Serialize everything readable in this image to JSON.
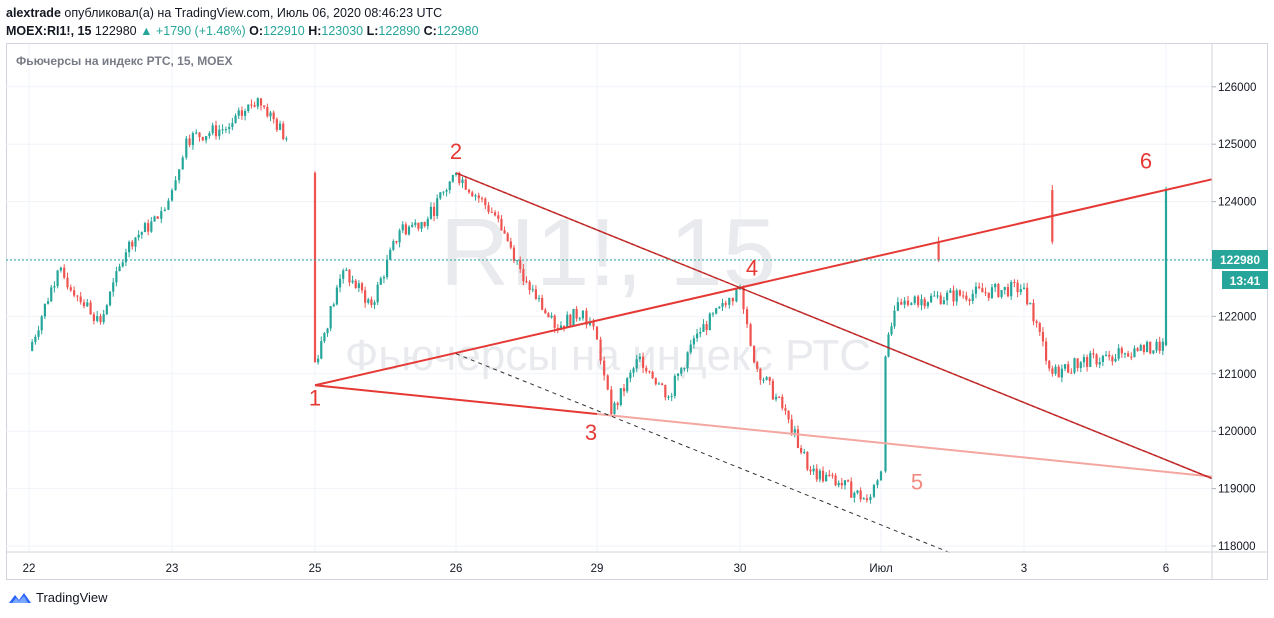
{
  "header": {
    "author": "alextrade",
    "published_text": "опубликовал(а) на TradingView.com, Июль 06, 2020 08:46:23 UTC",
    "symbol": "MOEX:RI1!, 15",
    "last": "122980",
    "change": "▲ +1790 (+1.48%)",
    "o_label": "O:",
    "o_value": "122910",
    "h_label": "H:",
    "h_value": "123030",
    "l_label": "L:",
    "l_value": "122890",
    "c_label": "C:",
    "c_value": "122980"
  },
  "chart": {
    "title": "Фьючерсы на индекс РТС, 15, MOEX",
    "watermark_big": "RI1!, 15",
    "watermark_small": "Фьючерсы на индекс РТС",
    "price_badge": "122980",
    "time_badge": "13:41"
  },
  "chart_data": {
    "type": "candlestick",
    "y_ticks": [
      118000,
      119000,
      120000,
      121000,
      122000,
      123000,
      124000,
      125000,
      126000
    ],
    "ylim": [
      117800,
      126600
    ],
    "x_ticks": [
      "22",
      "23",
      "25",
      "26",
      "29",
      "30",
      "Июл",
      "3",
      "6"
    ],
    "last_price": 122980,
    "price_path": [
      {
        "x": "22",
        "y": 121400
      },
      {
        "x": "22.2",
        "y": 122800
      },
      {
        "x": "22.5",
        "y": 121900
      },
      {
        "x": "22.7",
        "y": 123300
      },
      {
        "x": "22.9",
        "y": 123700
      },
      {
        "x": "23",
        "y": 124200
      },
      {
        "x": "23.1",
        "y": 125100
      },
      {
        "x": "23.4",
        "y": 125300
      },
      {
        "x": "23.6",
        "y": 125800
      },
      {
        "x": "23.8",
        "y": 125100
      },
      {
        "x": "24",
        "y": 124600
      },
      {
        "x": "25",
        "y": 124500
      },
      {
        "x": "25.0",
        "y": 121200
      },
      {
        "x": "25.2",
        "y": 122800
      },
      {
        "x": "25.4",
        "y": 122200
      },
      {
        "x": "25.6",
        "y": 123500
      },
      {
        "x": "25.8",
        "y": 123700
      },
      {
        "x": "26",
        "y": 124500
      },
      {
        "x": "26.3",
        "y": 123700
      },
      {
        "x": "26.5",
        "y": 122600
      },
      {
        "x": "26.7",
        "y": 121800
      },
      {
        "x": "26.9",
        "y": 122100
      },
      {
        "x": "29",
        "y": 121600
      },
      {
        "x": "29.1",
        "y": 120300
      },
      {
        "x": "29.3",
        "y": 121300
      },
      {
        "x": "29.5",
        "y": 120600
      },
      {
        "x": "29.7",
        "y": 121700
      },
      {
        "x": "29.9",
        "y": 122200
      },
      {
        "x": "30",
        "y": 122500
      },
      {
        "x": "30.1",
        "y": 121200
      },
      {
        "x": "30.3",
        "y": 120400
      },
      {
        "x": "30.5",
        "y": 119300
      },
      {
        "x": "30.7",
        "y": 119100
      },
      {
        "x": "30.9",
        "y": 118800
      },
      {
        "x": "Июл",
        "y": 119300
      },
      {
        "x": "Июл.1",
        "y": 121300
      },
      {
        "x": "Июл.3",
        "y": 122100
      },
      {
        "x": "Июл.6",
        "y": 122200
      },
      {
        "x": "Июл.9",
        "y": 122300
      },
      {
        "x": "3",
        "y": 122500
      },
      {
        "x": "3.2",
        "y": 121000
      },
      {
        "x": "3.4",
        "y": 121200
      },
      {
        "x": "3.6",
        "y": 121300
      },
      {
        "x": "3.8",
        "y": 121400
      },
      {
        "x": "6",
        "y": 121500
      },
      {
        "x": "6.0",
        "y": 124200
      },
      {
        "x": "6.1",
        "y": 123300
      },
      {
        "x": "6.2",
        "y": 122980
      }
    ],
    "annotations": [
      {
        "label": "1",
        "x": "25",
        "y": 120800
      },
      {
        "label": "2",
        "x": "26",
        "y": 124500
      },
      {
        "label": "3",
        "x": "29",
        "y": 120300
      },
      {
        "label": "4",
        "x": "30",
        "y": 122500
      },
      {
        "label": "5",
        "x": "Июл",
        "y": 119300
      },
      {
        "label": "6",
        "x": "6",
        "y": 124300
      }
    ]
  },
  "footer": {
    "brand": "TradingView"
  },
  "colors": {
    "up": "#26a69a",
    "down": "#ef5350",
    "line_dark": "#b22222",
    "line_red": "#e53935",
    "line_light": "#f4a6a0",
    "label_red": "#e53935",
    "label_light": "#f48a80"
  }
}
